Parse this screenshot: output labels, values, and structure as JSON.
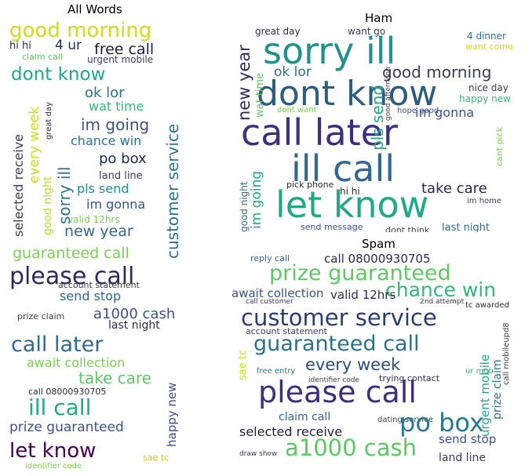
{
  "panels": {
    "all": {
      "title": "All Words",
      "words": [
        {
          "text": "good morning",
          "color": "#c8e020"
        },
        {
          "text": "4 ur",
          "color": "#1f2d5c"
        },
        {
          "text": "free call",
          "color": "#1e1e3c"
        },
        {
          "text": "hi hi",
          "color": "#2a2a4a"
        },
        {
          "text": "claim call",
          "color": "#5ec962"
        },
        {
          "text": "urgent mobile",
          "color": "#3b3b5c"
        },
        {
          "text": "dont know",
          "color": "#22a884"
        },
        {
          "text": "ok lor",
          "color": "#2c728e"
        },
        {
          "text": "wat time",
          "color": "#35b779"
        },
        {
          "text": "im going",
          "color": "#3b528b"
        },
        {
          "text": "chance win",
          "color": "#2c728e"
        },
        {
          "text": "po box",
          "color": "#1f2d4c"
        },
        {
          "text": "land line",
          "color": "#3b3b5c"
        },
        {
          "text": "pls send",
          "color": "#21918c"
        },
        {
          "text": "im gonna",
          "color": "#3b528b"
        },
        {
          "text": "valid 12hrs",
          "color": "#7ad151"
        },
        {
          "text": "new year",
          "color": "#31688e"
        },
        {
          "text": "guaranteed call",
          "color": "#7ad151"
        },
        {
          "text": "please call",
          "color": "#2c2c5c"
        },
        {
          "text": "account statement",
          "color": "#3b3b3b"
        },
        {
          "text": "send stop",
          "color": "#31688e"
        },
        {
          "text": "a1000 cash",
          "color": "#3b528b"
        },
        {
          "text": "prize claim",
          "color": "#3b3b3b"
        },
        {
          "text": "last night",
          "color": "#2a2a4a"
        },
        {
          "text": "call later",
          "color": "#31688e"
        },
        {
          "text": "await collection",
          "color": "#7ad151"
        },
        {
          "text": "take care",
          "color": "#5ec962"
        },
        {
          "text": "call 08000930705",
          "color": "#2a2a2a"
        },
        {
          "text": "ill call",
          "color": "#22a884"
        },
        {
          "text": "prize guaranteed",
          "color": "#3b528b"
        },
        {
          "text": "let know",
          "color": "#440154"
        },
        {
          "text": "sae tc",
          "color": "#d8c020"
        },
        {
          "text": "identifier code",
          "color": "#7ad151"
        },
        {
          "text": "selected receive",
          "color": "#3b3b5c"
        },
        {
          "text": "every week",
          "color": "#c8e020"
        },
        {
          "text": "good night",
          "color": "#b5de2b"
        },
        {
          "text": "sorry ill",
          "color": "#2c728e"
        },
        {
          "text": "great day",
          "color": "#2a2a4a"
        },
        {
          "text": "customer service",
          "color": "#2c728e"
        },
        {
          "text": "happy new",
          "color": "#3b528b"
        }
      ]
    },
    "ham": {
      "title": "Ham",
      "words": [
        {
          "text": "great day",
          "color": "#2c2c4c"
        },
        {
          "text": "want go",
          "color": "#3b3b5c"
        },
        {
          "text": "4 dinner",
          "color": "#2a788e"
        },
        {
          "text": "want come",
          "color": "#c8e020"
        },
        {
          "text": "sorry ill",
          "color": "#21918c"
        },
        {
          "text": "ok lor",
          "color": "#2c728e"
        },
        {
          "text": "good morning",
          "color": "#3b3b5c"
        },
        {
          "text": "nice day",
          "color": "#3b3b5c"
        },
        {
          "text": "happy new",
          "color": "#35b779"
        },
        {
          "text": "dont know",
          "color": "#2c5c7e"
        },
        {
          "text": "dont want",
          "color": "#7ad151"
        },
        {
          "text": "hope good",
          "color": "#3b528b"
        },
        {
          "text": "im gonna",
          "color": "#3b528b"
        },
        {
          "text": "call later",
          "color": "#3e2f7e"
        },
        {
          "text": "ill call",
          "color": "#31688e"
        },
        {
          "text": "take care",
          "color": "#2a2a4a"
        },
        {
          "text": "let know",
          "color": "#22a884"
        },
        {
          "text": "pick phone",
          "color": "#2a2a2a"
        },
        {
          "text": "hi hi",
          "color": "#2a2a2a"
        },
        {
          "text": "im home",
          "color": "#3b3b5c"
        },
        {
          "text": "send message",
          "color": "#3b528b"
        },
        {
          "text": "dont think",
          "color": "#3b3b5c"
        },
        {
          "text": "last night",
          "color": "#31688e"
        },
        {
          "text": "new year",
          "color": "#2c2c5c"
        },
        {
          "text": "wat time",
          "color": "#5ec962"
        },
        {
          "text": "pls send",
          "color": "#22a884"
        },
        {
          "text": "good afternoon",
          "color": "#3b3b3b"
        },
        {
          "text": "im going",
          "color": "#22a884"
        },
        {
          "text": "good night",
          "color": "#31688e"
        },
        {
          "text": "cant pick",
          "color": "#7ad151"
        }
      ]
    },
    "spam": {
      "title": "Spam",
      "words": [
        {
          "text": "reply call",
          "color": "#31688e"
        },
        {
          "text": "call 08000930705",
          "color": "#2a2a4a"
        },
        {
          "text": "prize guaranteed",
          "color": "#5ec962"
        },
        {
          "text": "chance win",
          "color": "#35b779"
        },
        {
          "text": "await collection",
          "color": "#3b528b"
        },
        {
          "text": "valid 12hrs",
          "color": "#2c2c4c"
        },
        {
          "text": "call customer",
          "color": "#3b3b5c"
        },
        {
          "text": "2nd attempt",
          "color": "#3b3b3b"
        },
        {
          "text": "tc awarded",
          "color": "#2a2a2a"
        },
        {
          "text": "customer service",
          "color": "#2c3e6e"
        },
        {
          "text": "account statement",
          "color": "#3b3b5c"
        },
        {
          "text": "guaranteed call",
          "color": "#2c728e"
        },
        {
          "text": "every week",
          "color": "#2c4c7e"
        },
        {
          "text": "free entry",
          "color": "#2a788e"
        },
        {
          "text": "ur mob",
          "color": "#35b779"
        },
        {
          "text": "identifier code",
          "color": "#3b3b3b"
        },
        {
          "text": "trying contact",
          "color": "#2a2a4a"
        },
        {
          "text": "please call",
          "color": "#3e2f7e"
        },
        {
          "text": "claim call",
          "color": "#31688e"
        },
        {
          "text": "dating service",
          "color": "#3b3b5c"
        },
        {
          "text": "selected receive",
          "color": "#1f1f3c"
        },
        {
          "text": "po box",
          "color": "#2a788e"
        },
        {
          "text": "send stop",
          "color": "#3b528b"
        },
        {
          "text": "draw show",
          "color": "#3b3b5c"
        },
        {
          "text": "a1000 cash",
          "color": "#5ec962"
        },
        {
          "text": "land line",
          "color": "#3b3b5c"
        },
        {
          "text": "sae tc",
          "color": "#c8e020"
        },
        {
          "text": "urgent mobile",
          "color": "#22a884"
        },
        {
          "text": "prize claim",
          "color": "#2a788e"
        },
        {
          "text": "call mobileupd8",
          "color": "#3b3b3b"
        }
      ]
    }
  }
}
